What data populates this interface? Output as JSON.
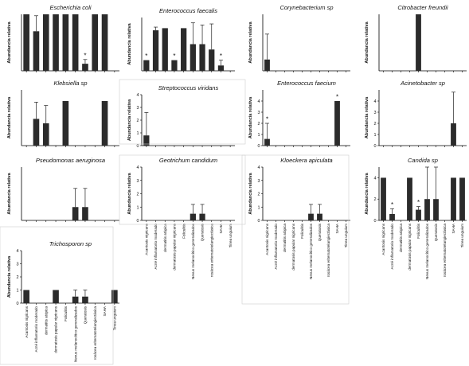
{
  "categories": [
    "Acantosis nigricans",
    "Acné inflamatorio moderado",
    "dermatitis atópica",
    "dermatosis papular nigricans",
    "Foliculitis",
    "Nevus melanocítico generalizados",
    "Queratosis",
    "rosácea eritematotelangiectásica",
    "SAHA",
    "Tinea unguium"
  ],
  "y_label": "Abundancia relativa",
  "star": "*",
  "colors": {
    "bar": "#2b2b2b",
    "axis": "#000000",
    "panel_border": "#cfcfcf"
  },
  "chart_data": [
    {
      "type": "bar",
      "title": "Escherichia coli",
      "ylim": [
        0,
        4
      ],
      "yticks": [],
      "values": [
        4,
        2.8,
        4,
        4,
        4,
        4,
        0.5,
        4,
        4,
        null
      ],
      "errors": [
        0,
        1.1,
        0,
        0,
        0,
        0,
        0.3,
        0,
        0,
        0
      ],
      "stars": [
        6
      ]
    },
    {
      "type": "bar",
      "title": "Enterococcus faecalis",
      "ylim": [
        0,
        5
      ],
      "yticks": [],
      "values": [
        1,
        3.8,
        4,
        1,
        4,
        2.5,
        2.5,
        2,
        0.5,
        null
      ],
      "errors": [
        0,
        0.3,
        0,
        0,
        0,
        2,
        1.8,
        2.4,
        0.5,
        0
      ],
      "stars": [
        0,
        3,
        8
      ]
    },
    {
      "type": "bar",
      "title": "Corynebacterium sp",
      "ylim": [
        0,
        4
      ],
      "yticks": [],
      "values": [
        0.8,
        0,
        0,
        0,
        0,
        0,
        0,
        0,
        0,
        0
      ],
      "errors": [
        1.8,
        0,
        0,
        0,
        0,
        0,
        0,
        0,
        0,
        0
      ],
      "stars": []
    },
    {
      "type": "bar",
      "title": "Citrobacter freundii",
      "ylim": [
        0,
        4
      ],
      "yticks": [],
      "values": [
        0,
        0,
        0,
        0,
        4,
        0,
        0,
        0,
        0,
        0
      ],
      "errors": [
        0,
        0,
        0,
        0,
        0,
        0,
        0,
        0,
        0,
        0
      ],
      "stars": []
    },
    {
      "type": "bar",
      "title": "Klebsiella sp",
      "ylim": [
        0,
        5
      ],
      "yticks": [],
      "values": [
        0,
        2.4,
        2,
        0,
        4,
        0,
        0,
        0,
        4,
        0
      ],
      "errors": [
        0,
        1.5,
        1.6,
        0,
        0,
        0,
        0,
        0,
        0,
        0
      ],
      "stars": []
    },
    {
      "type": "bar",
      "title": "Streptococcus viridans",
      "ylim": [
        0,
        4
      ],
      "yticks": [
        "4",
        "3",
        "2",
        "1",
        "0"
      ],
      "values": [
        0.8,
        0,
        0,
        0,
        0,
        0,
        0,
        0,
        0,
        0
      ],
      "errors": [
        1.8,
        0,
        0,
        0,
        0,
        0,
        0,
        0,
        0,
        0
      ],
      "stars": []
    },
    {
      "type": "bar",
      "title": "Enterococcus faecium",
      "ylim": [
        0,
        5
      ],
      "yticks": [
        "4",
        "3",
        "2",
        "1",
        "0"
      ],
      "values": [
        0.6,
        0,
        0,
        0,
        0,
        0,
        0,
        0,
        4,
        0
      ],
      "errors": [
        1.4,
        0,
        0,
        0,
        0,
        0,
        0,
        0,
        0,
        0
      ],
      "stars": [
        0,
        8
      ]
    },
    {
      "type": "bar",
      "title": "Acinetobacter sp",
      "ylim": [
        0,
        5
      ],
      "yticks": [
        "4",
        "3",
        "2",
        "1",
        "0"
      ],
      "values": [
        0,
        0,
        0,
        0,
        0,
        0,
        0,
        0,
        2,
        0
      ],
      "errors": [
        0,
        0,
        0,
        0,
        0,
        0,
        0,
        0,
        2.8,
        0
      ],
      "stars": []
    },
    {
      "type": "bar",
      "title": "Pseudomonas aeruginosa",
      "ylim": [
        0,
        4
      ],
      "yticks": [],
      "values": [
        0,
        0,
        0,
        0,
        0,
        1,
        1,
        0,
        0,
        0
      ],
      "errors": [
        0,
        0,
        0,
        0,
        0,
        1.4,
        1.4,
        0,
        0,
        0
      ],
      "stars": []
    },
    {
      "type": "bar",
      "title": "Geotrichum candidum",
      "ylim": [
        0,
        4
      ],
      "yticks": [
        "4",
        "3",
        "2",
        "1",
        "0"
      ],
      "values": [
        0,
        0,
        0,
        0,
        0,
        0.5,
        0.5,
        0,
        0,
        0
      ],
      "errors": [
        0,
        0,
        0,
        0,
        0,
        0.7,
        0.7,
        0,
        0,
        0
      ],
      "stars": []
    },
    {
      "type": "bar",
      "title": "Kloeckera apiculata",
      "ylim": [
        0,
        4
      ],
      "yticks": [
        "4",
        "3",
        "2",
        "1",
        "0"
      ],
      "values": [
        0,
        0,
        0,
        0,
        0,
        0.5,
        0.5,
        0,
        0,
        0
      ],
      "errors": [
        0,
        0,
        0,
        0,
        0,
        0.7,
        0.7,
        0,
        0,
        0
      ],
      "stars": []
    },
    {
      "type": "bar",
      "title": "Candida sp",
      "ylim": [
        0,
        5
      ],
      "yticks": [
        "4",
        "2",
        "0"
      ],
      "values": [
        4,
        0.6,
        0,
        4,
        1,
        2,
        2,
        0,
        4,
        4
      ],
      "errors": [
        0,
        0.5,
        0,
        0,
        0.3,
        3,
        3,
        0,
        0,
        0
      ],
      "stars": [
        1,
        4
      ]
    },
    {
      "type": "bar",
      "title": "Trichosporon sp",
      "ylim": [
        0,
        4
      ],
      "yticks": [
        "4",
        "3",
        "2",
        "1",
        "0"
      ],
      "values": [
        1,
        0,
        0,
        1,
        0,
        0.5,
        0.5,
        0,
        0,
        1
      ],
      "errors": [
        0,
        0,
        0,
        0,
        0,
        0.5,
        0.5,
        0,
        0,
        0
      ],
      "stars": []
    }
  ]
}
